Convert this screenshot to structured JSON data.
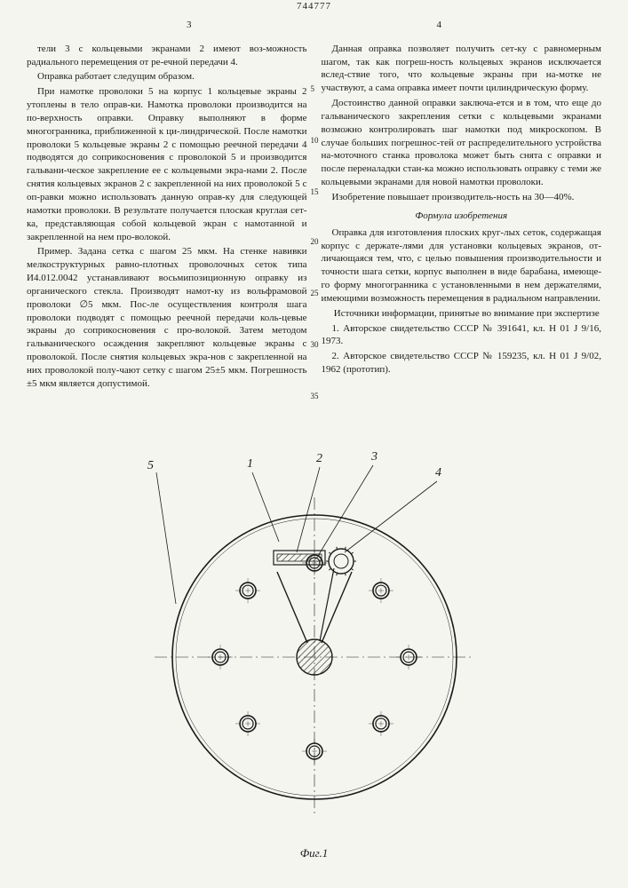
{
  "patent_number": "744777",
  "page_left": "3",
  "page_right": "4",
  "col_left": {
    "p1": "тели 3 с кольцевыми экранами 2 имеют воз-можность радиального перемещения от ре-ечной передачи 4.",
    "p2": "Оправка работает следущим образом.",
    "p3": "При намотке проволоки 5 на корпус 1 кольцевые экраны 2 утоплены в тело оправ-ки. Намотка проволоки производится на по-верхность оправки. Оправку выполняют в форме многогранника, приближенной к ци-линдрической. После намотки проволоки 5 кольцевые экраны 2 с помощью реечной передачи 4 подводятся до соприкосновения с проволокой 5 и производится гальвани-ческое закрепление ее с кольцевыми экра-нами 2. После снятия кольцевых экранов 2 с закрепленной на них проволокой 5 с оп-равки можно использовать данную оправ-ку для следующей намотки проволоки. В результате получается плоская круглая сет-ка, представляющая собой кольцевой экран с намотанной и закрепленной на нем про-волокой.",
    "p4": "Пример. Задана сетка с шагом 25 мкм. На стенке навивки мелкоструктурных равно-плотных проволочных сеток типа И4.012.0042 устанавливают восьмипозиционную оправку из органического стекла. Производят намот-ку из вольфрамовой проволоки ∅5 мкм. Пос-ле осуществления контроля шага проволоки подводят с помощью реечной передачи коль-цевые экраны до соприкосновения с про-волокой. Затем методом гальванического осаждения закрепляют кольцевые экраны с проволокой. После снятия кольцевых экра-нов с закрепленной на них проволокой полу-чают сетку с шагом 25±5 мкм. Погрешность ±5 мкм является допустимой."
  },
  "col_right": {
    "p1": "Данная оправка позволяет получить сет-ку с равномерным шагом, так как погреш-ность кольцевых экранов исключается вслед-ствие того, что кольцевые экраны при на-мотке не участвуют, а сама оправка имеет почти цилиндрическую форму.",
    "p2": "Достоинство данной оправки заключа-ется и в том, что еще до гальванического закрепления сетки с кольцевыми экранами возможно контролировать шаг намотки под микроскопом. В случае больших погрешнос-тей от распределительного устройства на-моточного станка проволока может быть снята с оправки и после переналадки стан-ка можно использовать оправку с теми же кольцевыми экранами для новой намотки проволоки.",
    "p3": "Изобретение повышает производитель-ность на 30—40%.",
    "formula_title": "Формула изобретения",
    "p4": "Оправка для изготовления плоских круг-лых сеток, содержащая корпус с держате-лями для установки кольцевых экранов, от-личающаяся тем, что, с целью повышения производительности и точности шага сетки, корпус выполнен в виде барабана, имеюще-го форму многогранника с установленными в нем держателями, имеющими возможность перемещения в радиальном направлении.",
    "p5": "Источники информации, принятые во внимание при экспертизе",
    "p6": "1. Авторское свидетельство СССР № 391641, кл. H 01 J 9/16, 1973.",
    "p7": "2. Авторское свидетельство СССР № 159235, кл. H 01 J 9/02, 1962 (прототип)."
  },
  "line_marks": [
    "5",
    "10",
    "15",
    "20",
    "25",
    "30",
    "35"
  ],
  "figure": {
    "label": "Фиг.1",
    "callouts": [
      "1",
      "2",
      "3",
      "4",
      "5"
    ],
    "stroke": "#1a1a1a",
    "stroke_width": 1.2,
    "hub_hatch": "#1a1a1a",
    "ring_inner_r": 6,
    "ring_outer_r": 9,
    "main_r": 160,
    "hub_r": 20,
    "ring_orbit_r": 106,
    "n_rings": 8
  }
}
